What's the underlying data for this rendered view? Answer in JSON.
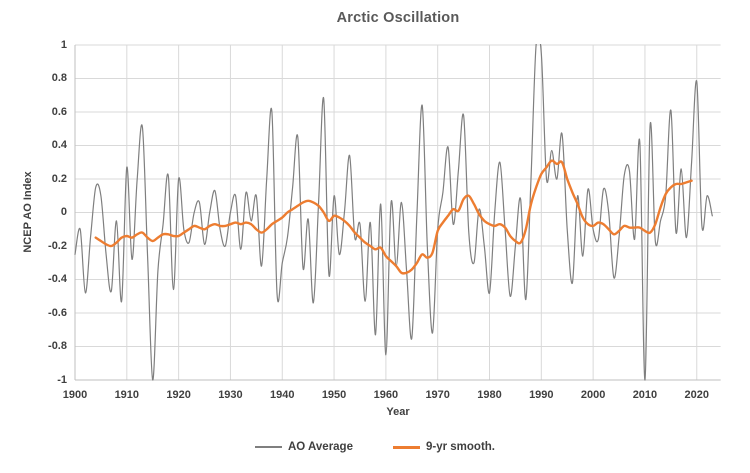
{
  "title": "Arctic Oscillation",
  "axes": {
    "xlabel": "Year",
    "ylabel": "NCEP AO Index",
    "x_tick_labels": [
      "1900",
      "1910",
      "1920",
      "1930",
      "1940",
      "1950",
      "1960",
      "1970",
      "1980",
      "1990",
      "2000",
      "2010",
      "2020"
    ],
    "x_tick_values": [
      1900,
      1910,
      1920,
      1930,
      1940,
      1950,
      1960,
      1970,
      1980,
      1990,
      2000,
      2010,
      2020
    ],
    "y_tick_labels": [
      "1",
      "0.8",
      "0.6",
      "0.4",
      "0.2",
      "0",
      "-0.2",
      "-0.4",
      "-0.6",
      "-0.8",
      "-1"
    ],
    "y_tick_values": [
      1,
      0.8,
      0.6,
      0.4,
      0.2,
      0,
      -0.2,
      -0.4,
      -0.6,
      -0.8,
      -1
    ]
  },
  "legend": {
    "items": [
      {
        "label": "AO Average",
        "color": "#7f7f7f"
      },
      {
        "label": "9-yr smooth.",
        "color": "#ED7D31"
      }
    ]
  },
  "colors": {
    "background": "#ffffff",
    "grid": "#d9d9d9",
    "axis_line": "#bfbfbf",
    "tick_text": "#404040",
    "title_text": "#595959",
    "series_gray": "#7f7f7f",
    "series_orange": "#ED7D31"
  },
  "chart_data": {
    "type": "line",
    "title": "Arctic Oscillation",
    "xlabel": "Year",
    "ylabel": "NCEP AO Index",
    "xlim": [
      1900,
      2024.6
    ],
    "ylim": [
      -1,
      1
    ],
    "grid": true,
    "smoothed_lines": true,
    "legend_position": "bottom",
    "series": [
      {
        "name": "AO Average",
        "color": "#7f7f7f",
        "width": 1.2,
        "x_start": 1900,
        "x_step": 1,
        "values": [
          -0.25,
          -0.1,
          -0.48,
          -0.15,
          0.15,
          0.1,
          -0.25,
          -0.47,
          -0.05,
          -0.53,
          0.27,
          -0.28,
          0.2,
          0.51,
          -0.25,
          -1.0,
          -0.35,
          -0.07,
          0.22,
          -0.46,
          0.2,
          -0.1,
          -0.18,
          0.0,
          0.06,
          -0.19,
          0.0,
          0.13,
          -0.1,
          -0.2,
          0.0,
          0.1,
          -0.22,
          0.12,
          -0.05,
          0.1,
          -0.32,
          0.2,
          0.6,
          -0.49,
          -0.3,
          -0.15,
          0.15,
          0.45,
          -0.33,
          -0.04,
          -0.54,
          0.05,
          0.68,
          -0.37,
          0.1,
          -0.25,
          0.0,
          0.34,
          -0.15,
          -0.07,
          -0.53,
          -0.06,
          -0.73,
          0.05,
          -0.85,
          0.06,
          -0.32,
          0.06,
          -0.35,
          -0.75,
          0.0,
          0.64,
          -0.2,
          -0.72,
          -0.1,
          0.12,
          0.39,
          -0.07,
          0.25,
          0.58,
          -0.12,
          -0.3,
          0.02,
          -0.2,
          -0.48,
          0.0,
          0.3,
          -0.1,
          -0.5,
          -0.2,
          0.08,
          -0.52,
          0.2,
          1.0,
          0.95,
          0.2,
          0.37,
          0.2,
          0.47,
          -0.1,
          -0.42,
          0.1,
          -0.26,
          0.14,
          -0.1,
          -0.16,
          0.14,
          0.0,
          -0.39,
          -0.15,
          0.22,
          0.25,
          -0.16,
          0.42,
          -1.0,
          0.52,
          -0.17,
          -0.05,
          0.1,
          0.61,
          -0.12,
          0.26,
          -0.15,
          0.3,
          0.78,
          -0.08,
          0.1,
          -0.02
        ]
      },
      {
        "name": "9-yr smooth.",
        "color": "#ED7D31",
        "width": 2.4,
        "x_start": 1904,
        "x_step": 1,
        "values": [
          -0.15,
          -0.17,
          -0.19,
          -0.2,
          -0.18,
          -0.15,
          -0.14,
          -0.15,
          -0.13,
          -0.12,
          -0.15,
          -0.17,
          -0.15,
          -0.13,
          -0.13,
          -0.14,
          -0.14,
          -0.12,
          -0.1,
          -0.08,
          -0.09,
          -0.1,
          -0.08,
          -0.07,
          -0.08,
          -0.08,
          -0.07,
          -0.06,
          -0.07,
          -0.06,
          -0.07,
          -0.1,
          -0.12,
          -0.1,
          -0.07,
          -0.05,
          -0.03,
          0.0,
          0.02,
          0.04,
          0.06,
          0.07,
          0.06,
          0.04,
          0.0,
          -0.05,
          -0.02,
          -0.03,
          -0.05,
          -0.08,
          -0.12,
          -0.15,
          -0.18,
          -0.2,
          -0.22,
          -0.21,
          -0.26,
          -0.29,
          -0.32,
          -0.36,
          -0.36,
          -0.34,
          -0.3,
          -0.25,
          -0.27,
          -0.24,
          -0.11,
          -0.06,
          -0.02,
          0.02,
          0.01,
          0.08,
          0.1,
          0.05,
          -0.01,
          -0.05,
          -0.07,
          -0.08,
          -0.07,
          -0.09,
          -0.14,
          -0.17,
          -0.18,
          -0.1,
          0.05,
          0.15,
          0.23,
          0.27,
          0.31,
          0.29,
          0.3,
          0.2,
          0.12,
          0.05,
          -0.03,
          -0.07,
          -0.08,
          -0.06,
          -0.07,
          -0.1,
          -0.13,
          -0.11,
          -0.08,
          -0.09,
          -0.09,
          -0.09,
          -0.11,
          -0.12,
          -0.07,
          0.03,
          0.11,
          0.15,
          0.17,
          0.17,
          0.18,
          0.19
        ]
      }
    ]
  }
}
